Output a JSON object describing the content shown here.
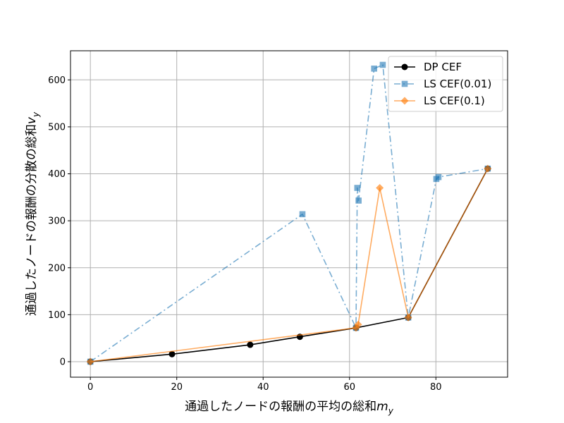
{
  "chart_data": {
    "type": "line",
    "title": "",
    "xlabel": "通過したノードの報酬の平均の総和",
    "xlabel_var": "m",
    "xlabel_sub": "y",
    "ylabel": "通過したノードの報酬の分散の総和",
    "ylabel_var": "v",
    "ylabel_sub": "y",
    "xlim": [
      -4.6,
      96.6
    ],
    "ylim": [
      -33,
      662
    ],
    "xticks": [
      0,
      20,
      40,
      60,
      80
    ],
    "yticks": [
      0,
      100,
      200,
      300,
      400,
      500,
      600
    ],
    "grid": true,
    "legend_position": "top-right",
    "series": [
      {
        "name": "DP CEF",
        "color": "#000000",
        "marker": "circle",
        "linestyle": "solid",
        "alpha": 1.0,
        "x": [
          0,
          18.9,
          37,
          48.5,
          61.5,
          73.6,
          92
        ],
        "y": [
          0,
          16,
          36,
          53,
          72,
          94,
          411
        ]
      },
      {
        "name": "LS CEF(0.01)",
        "color": "#1f77b4",
        "marker": "square",
        "linestyle": "dashdot",
        "alpha": 0.6,
        "x": [
          0,
          49.1,
          61.5,
          61.8,
          62.1,
          65.7,
          67.7,
          73.6,
          80.1,
          80.6,
          92
        ],
        "y": [
          0,
          314,
          72,
          370,
          343,
          624,
          632,
          94,
          389,
          393,
          411
        ]
      },
      {
        "name": "LS CEF(0.1)",
        "color": "#ff7f0e",
        "marker": "diamond",
        "linestyle": "solid",
        "alpha": 0.65,
        "x": [
          0,
          61.5,
          62,
          67,
          73.6,
          92
        ],
        "y": [
          0,
          72,
          79,
          370,
          94,
          411
        ]
      }
    ]
  }
}
